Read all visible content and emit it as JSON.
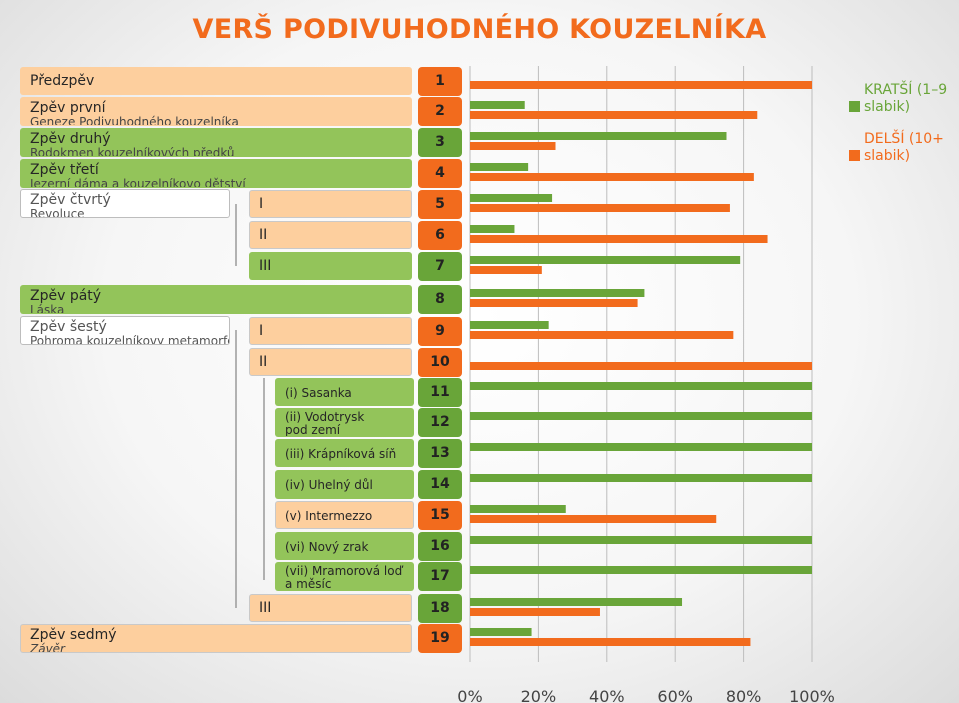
{
  "title": "VERŠ PODIVUHODNÉHO KOUZELNÍKA",
  "colors": {
    "short": "#69a539",
    "long": "#f26b1d"
  },
  "cantos": [
    {
      "title": "Předzpěv",
      "subtitle": ""
    },
    {
      "title": "Zpěv první",
      "subtitle": "Geneze Podivuhodného kouzelníka"
    },
    {
      "title": "Zpěv druhý",
      "subtitle": "Rodokmen kouzelníkových předků"
    },
    {
      "title": "Zpěv třetí",
      "subtitle": "Jezerní dáma a kouzelníkovo dětství"
    },
    {
      "title": "Zpěv čtvrtý",
      "subtitle": "Revoluce"
    },
    {
      "title": "Zpěv pátý",
      "subtitle": "Láska"
    },
    {
      "title": "Zpěv šestý",
      "subtitle": "Pohroma kouzelníkovy metamorfózy"
    },
    {
      "title": "Zpěv sedmý",
      "subtitle": "Závěr"
    }
  ],
  "parts": [
    "I",
    "II",
    "III",
    "I",
    "II",
    "III"
  ],
  "subparts": [
    "(i) Sasanka",
    "(ii) Vodotrysk pod zemí",
    "(iii) Krápníková síň",
    "(iv) Uhelný důl",
    "(v) Intermezzo",
    "(vi) Nový zrak",
    "(vii) Mramorová loď a měsíc"
  ],
  "chart_data": {
    "type": "bar",
    "orientation": "horizontal",
    "categories": [
      "1",
      "2",
      "3",
      "4",
      "5",
      "6",
      "7",
      "8",
      "9",
      "10",
      "11",
      "12",
      "13",
      "14",
      "15",
      "16",
      "17",
      "18",
      "19"
    ],
    "series": [
      {
        "name": "KRATŠÍ (1–9 slabik)",
        "values": [
          0,
          16,
          75,
          17,
          24,
          13,
          79,
          51,
          23,
          0,
          100,
          100,
          100,
          100,
          28,
          100,
          100,
          62,
          18
        ]
      },
      {
        "name": "DELŠÍ (10+ slabik)",
        "values": [
          100,
          84,
          25,
          83,
          76,
          87,
          21,
          49,
          77,
          100,
          0,
          0,
          0,
          0,
          72,
          0,
          0,
          38,
          82
        ]
      }
    ],
    "xlim": [
      0,
      100
    ],
    "xticks": [
      "0%",
      "20%",
      "40%",
      "60%",
      "80%",
      "100%"
    ],
    "grid": true,
    "legend_position": "top-right"
  }
}
